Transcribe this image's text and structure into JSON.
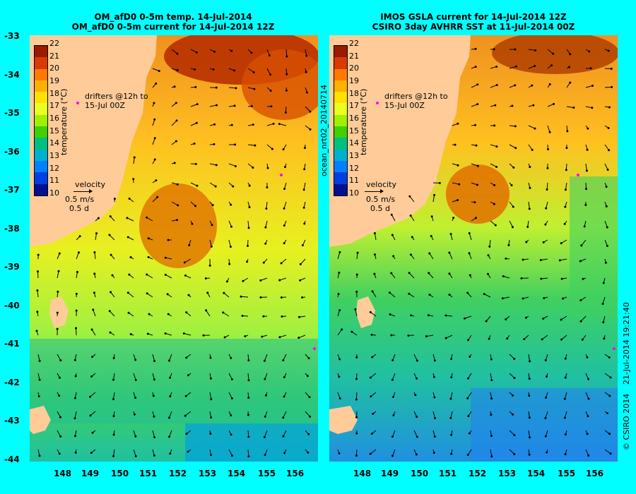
{
  "left": {
    "title_line1": "OM_afD0 0-5m temp. 14-Jul-2014",
    "title_line2": "OM_afD0 0-5m current for 14-Jul-2014 12Z",
    "drifters_line1": "drifters @12h to",
    "drifters_line2": "15-Jul 00Z",
    "velocity_label": "velocity",
    "velocity_speed": "0.5 m/s",
    "velocity_days": "0.5 d"
  },
  "right": {
    "title_line1": "IMOS GSLA current for 14-Jul-2014 12Z",
    "title_line2": "CSIRO 3day AVHRR SST at 11-Jul-2014 00Z",
    "drifters_line1": "drifters @12h to",
    "drifters_line2": "15-Jul 00Z",
    "velocity_label": "velocity",
    "velocity_speed": "0.5 m/s",
    "velocity_days": "0.5 d",
    "side_label": "ocean_nrt02_20140714"
  },
  "colorbar": {
    "title": "temperature (°C)",
    "ticks": [
      "22",
      "21",
      "20",
      "19",
      "18",
      "17",
      "16",
      "15",
      "14",
      "13",
      "12",
      "11",
      "10"
    ],
    "colors": [
      "#9a1a00",
      "#d83a00",
      "#ff7a00",
      "#ffb000",
      "#ffe000",
      "#e8ff20",
      "#a0f000",
      "#40d000",
      "#00c080",
      "#00b0d0",
      "#0080ff",
      "#0040e0",
      "#001090"
    ]
  },
  "axes": {
    "y_ticks": [
      "-33",
      "-34",
      "-35",
      "-36",
      "-37",
      "-38",
      "-39",
      "-40",
      "-41",
      "-42",
      "-43",
      "-44"
    ],
    "x_ticks": [
      "148",
      "149",
      "150",
      "151",
      "152",
      "153",
      "154",
      "155",
      "156"
    ]
  },
  "footer": {
    "timestamp": "21-Jul-2014 19:21:40",
    "credit": "© CSIRO 2014"
  },
  "colors": {
    "background": "#00ffff",
    "land": "#ffcc99"
  },
  "chart_data": {
    "type": "heatmap",
    "x_range": [
      147.0,
      156.5
    ],
    "y_range": [
      -44,
      -33
    ],
    "color_range": [
      10,
      22
    ],
    "panels": [
      "model temperature and current",
      "satellite SST and geostrophic current"
    ]
  }
}
